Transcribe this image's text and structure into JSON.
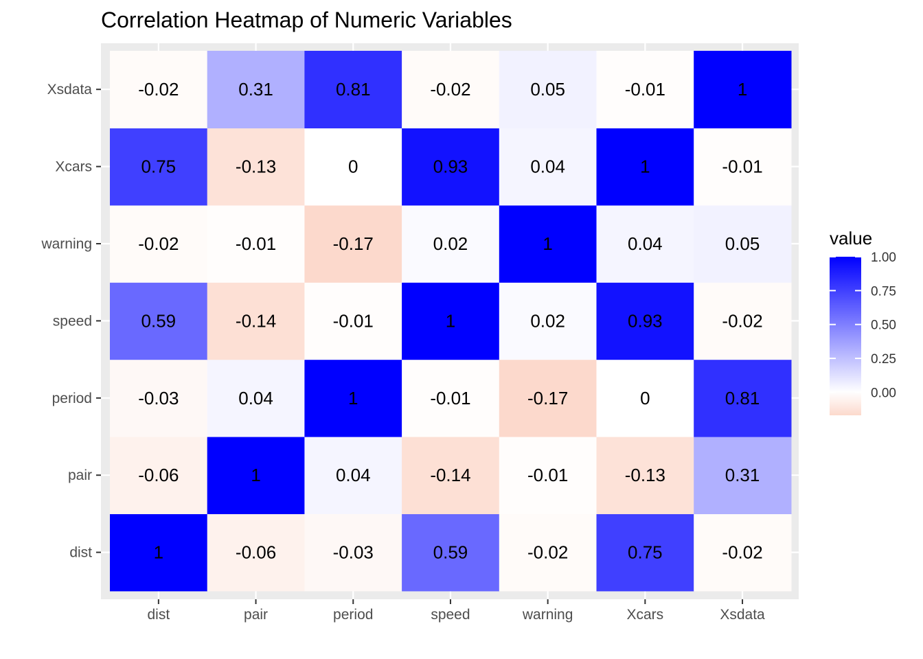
{
  "chart_data": {
    "type": "heatmap",
    "title": "Correlation Heatmap of Numeric Variables",
    "x_categories": [
      "dist",
      "pair",
      "period",
      "speed",
      "warning",
      "Xcars",
      "Xsdata"
    ],
    "y_categories": [
      "dist",
      "pair",
      "period",
      "speed",
      "warning",
      "Xcars",
      "Xsdata"
    ],
    "values": [
      [
        1,
        -0.06,
        -0.03,
        0.59,
        -0.02,
        0.75,
        -0.02
      ],
      [
        -0.06,
        1,
        0.04,
        -0.14,
        -0.01,
        -0.13,
        0.31
      ],
      [
        -0.03,
        0.04,
        1,
        -0.01,
        -0.17,
        0,
        0.81
      ],
      [
        0.59,
        -0.14,
        -0.01,
        1,
        0.02,
        0.93,
        -0.02
      ],
      [
        -0.02,
        -0.01,
        -0.17,
        0.02,
        1,
        0.04,
        0.05
      ],
      [
        0.75,
        -0.13,
        0,
        0.93,
        0.04,
        1,
        -0.01
      ],
      [
        -0.02,
        0.31,
        0.81,
        -0.02,
        0.05,
        -0.01,
        1
      ]
    ],
    "legend": {
      "title": "value",
      "ticks": [
        1.0,
        0.75,
        0.5,
        0.25,
        0.0
      ],
      "tick_labels": [
        "1.00",
        "0.75",
        "0.50",
        "0.25",
        "0.00"
      ],
      "range": [
        -0.17,
        1.0
      ],
      "placement": "right"
    },
    "colors": {
      "high": "#0000ff",
      "mid": "#ffffff",
      "low": "#fcd9cc",
      "panel_bg": "#ebebeb",
      "grid": "#ffffff"
    }
  }
}
